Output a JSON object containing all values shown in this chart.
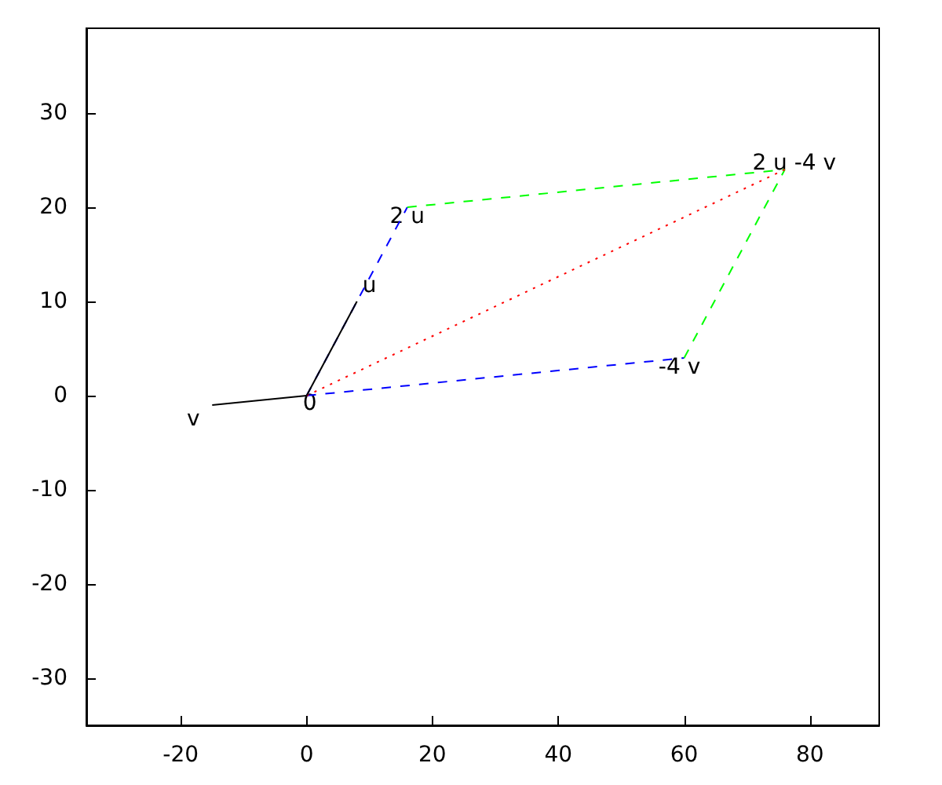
{
  "chart_data": {
    "type": "line",
    "xlim": [
      -35,
      91
    ],
    "ylim": [
      -35,
      39
    ],
    "xticks": [
      -20,
      0,
      20,
      40,
      60,
      80
    ],
    "yticks": [
      -30,
      -20,
      -10,
      0,
      10,
      20,
      30
    ],
    "marker": "none",
    "series": [
      {
        "color": "#0000ff",
        "line_style": "dashed",
        "x": [
          0,
          16
        ],
        "values": [
          0,
          20
        ]
      },
      {
        "color": "#0000ff",
        "line_style": "dashed",
        "x": [
          0,
          60
        ],
        "values": [
          0,
          4
        ]
      },
      {
        "color": "#00ff00",
        "line_style": "dashed",
        "x": [
          16,
          76
        ],
        "values": [
          20,
          24
        ]
      },
      {
        "color": "#00ff00",
        "line_style": "dashed",
        "x": [
          60,
          76
        ],
        "values": [
          4,
          24
        ]
      },
      {
        "color": "#ff0000",
        "line_style": "dotted",
        "x": [
          0,
          76
        ],
        "values": [
          0,
          24
        ]
      },
      {
        "color": "#000000",
        "line_style": "solid",
        "x": [
          0,
          8
        ],
        "values": [
          0,
          10
        ]
      },
      {
        "color": "#000000",
        "line_style": "solid",
        "x": [
          0,
          -15
        ],
        "values": [
          0,
          -1
        ]
      }
    ],
    "annotations": [
      {
        "text": "0",
        "x": 0,
        "y": 0
      },
      {
        "text": "u",
        "x": 8,
        "y": 10
      },
      {
        "text": "2 u",
        "x": 16,
        "y": 20
      },
      {
        "text": "v",
        "x": -15,
        "y": -1
      },
      {
        "text": "-4 v",
        "x": 60,
        "y": 4
      },
      {
        "text": "2 u -4 v",
        "x": 76,
        "y": 24
      }
    ]
  }
}
